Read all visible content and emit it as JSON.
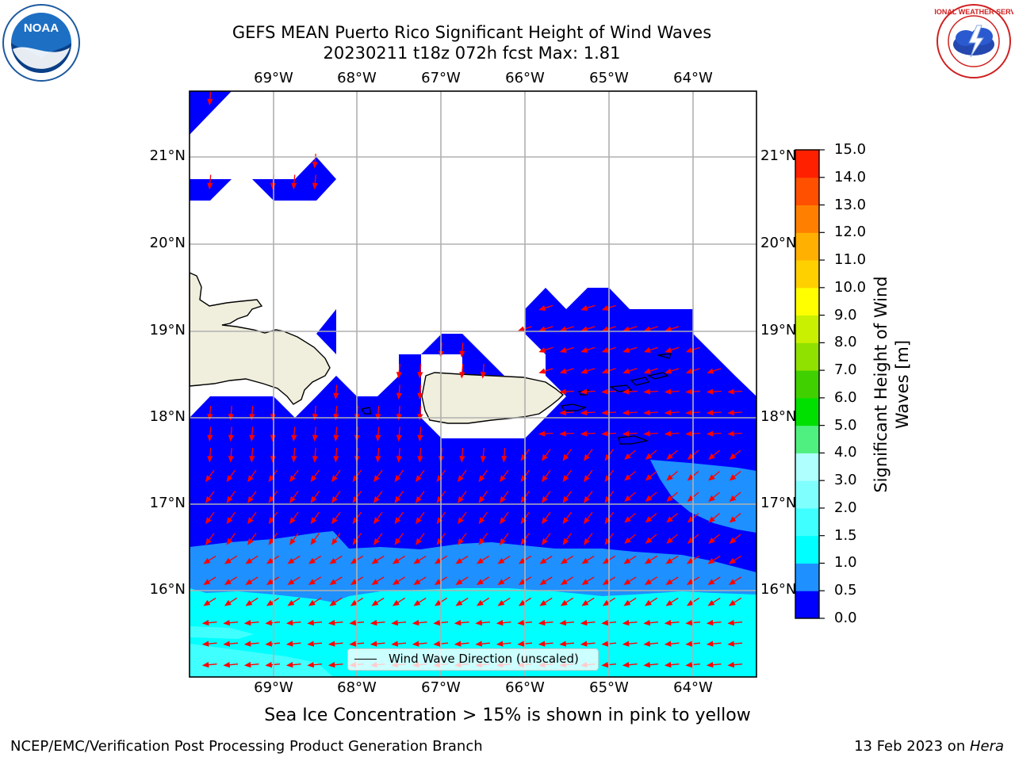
{
  "title_line1": "GEFS MEAN Puerto Rico Significant Height of Wind Waves",
  "title_line2": "20230211 t18z 072h fcst   Max: 1.81",
  "lon_labels": [
    "69°W",
    "68°W",
    "67°W",
    "66°W",
    "65°W",
    "64°W"
  ],
  "lat_labels": [
    "21°N",
    "20°N",
    "19°N",
    "18°N",
    "17°N",
    "16°N"
  ],
  "colorbar": {
    "title": "Significant Height of Wind Waves [m]",
    "ticks": [
      "15.0",
      "14.0",
      "13.0",
      "12.0",
      "11.0",
      "10.0",
      "9.0",
      "8.0",
      "7.0",
      "6.0",
      "5.0",
      "4.0",
      "3.0",
      "2.0",
      "1.5",
      "1.0",
      "0.5",
      "0.0"
    ],
    "colors": [
      "#0000ff",
      "#1e90ff",
      "#00ffff",
      "#40ffff",
      "#80ffff",
      "#b0ffff",
      "#50f080",
      "#00e000",
      "#40d000",
      "#90e000",
      "#c8f000",
      "#ffff00",
      "#ffd000",
      "#ffb000",
      "#ff8000",
      "#ff5000",
      "#ff2000"
    ]
  },
  "legend_label": "Wind Wave Direction (unscaled)",
  "sea_ice_note": "Sea Ice Concentration > 15% is shown in pink to yellow",
  "credit_left": "NCEP/EMC/Verification Post Processing Product Generation Branch",
  "credit_date": "13 Feb 2023 on ",
  "credit_machine": "Hera",
  "logos": {
    "left": {
      "name": "noaa-logo",
      "text": "NOAA"
    },
    "right": {
      "name": "nws-logo",
      "text": "NATIONAL WEATHER SERVICE"
    }
  },
  "colors": {
    "level_0_05": "#0000ff",
    "level_05_10": "#1e90ff",
    "level_10_15": "#00ffff",
    "land": "#f0eedc",
    "arrows": "#ff0000",
    "grid": "#b0b0b0"
  }
}
